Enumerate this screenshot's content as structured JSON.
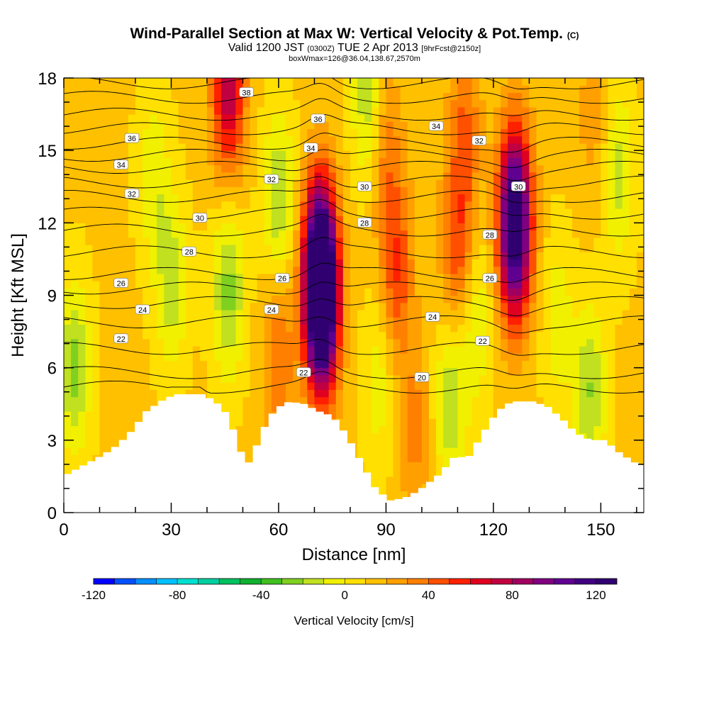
{
  "title": {
    "main": "Wind-Parallel Section at Max W: Vertical Velocity & Pot.Temp.",
    "copyright": "(C)",
    "valid_prefix": "Valid 1200 JST",
    "valid_zulu": "(0300Z)",
    "valid_date": "TUE 2 Apr 2013",
    "forecast": "[9hrFcst@2150z]",
    "box_info": "boxWmax=126@36.04,138.67,2570m"
  },
  "chart_data": {
    "type": "heatmap",
    "xlabel": "Distance [nm]",
    "ylabel": "Height [Kft MSL]",
    "xlim": [
      0,
      162
    ],
    "ylim": [
      0,
      18
    ],
    "x_ticks": [
      0,
      30,
      60,
      90,
      120,
      150
    ],
    "y_ticks": [
      0,
      3,
      6,
      9,
      12,
      15,
      18
    ],
    "colorbar": {
      "label": "Vertical Velocity [cm/s]",
      "range": [
        -120,
        130
      ],
      "step": 10,
      "tick_values": [
        -120,
        -80,
        -40,
        0,
        40,
        80,
        120
      ],
      "colors": [
        "#0000ff",
        "#0050ff",
        "#0090ff",
        "#00c0ff",
        "#00e0d0",
        "#00d0a0",
        "#00c060",
        "#10b030",
        "#40c020",
        "#80d020",
        "#c0e020",
        "#f0f000",
        "#ffe000",
        "#ffc000",
        "#ffa000",
        "#ff8000",
        "#ff5000",
        "#ff2000",
        "#e00020",
        "#c00040",
        "#a00060",
        "#800080",
        "#600090",
        "#400080",
        "#300070"
      ]
    },
    "terrain_kft": [
      [
        0,
        1.6
      ],
      [
        5,
        2
      ],
      [
        10,
        2.4
      ],
      [
        14,
        2.8
      ],
      [
        18,
        3.4
      ],
      [
        22,
        4.2
      ],
      [
        26,
        4.6
      ],
      [
        30,
        4.9
      ],
      [
        38,
        4.9
      ],
      [
        42,
        4.5
      ],
      [
        45,
        4.0
      ],
      [
        48,
        2.6
      ],
      [
        51,
        2.0
      ],
      [
        54,
        3.3
      ],
      [
        58,
        4.3
      ],
      [
        62,
        4.6
      ],
      [
        66,
        4.5
      ],
      [
        70,
        4.2
      ],
      [
        74,
        4.0
      ],
      [
        78,
        3.2
      ],
      [
        82,
        2.1
      ],
      [
        86,
        1.0
      ],
      [
        90,
        0.5
      ],
      [
        94,
        0.6
      ],
      [
        98,
        0.9
      ],
      [
        104,
        1.6
      ],
      [
        108,
        2.3
      ],
      [
        112,
        2.3
      ],
      [
        116,
        3.3
      ],
      [
        120,
        4.2
      ],
      [
        124,
        4.6
      ],
      [
        130,
        4.6
      ],
      [
        134,
        4.4
      ],
      [
        138,
        3.9
      ],
      [
        142,
        3.3
      ],
      [
        146,
        3.0
      ],
      [
        150,
        3.0
      ],
      [
        154,
        2.5
      ],
      [
        158,
        2.1
      ],
      [
        162,
        1.9
      ]
    ],
    "velocity_features": [
      {
        "x": 72,
        "z": 8.5,
        "value": 126
      },
      {
        "x": 71.5,
        "z": 10.5,
        "value": 95
      },
      {
        "x": 126,
        "z": 12.7,
        "value": 80
      },
      {
        "x": 126,
        "z": 11,
        "value": 60
      },
      {
        "x": 46,
        "z": 17.5,
        "value": 65
      },
      {
        "x": 60,
        "z": 6.5,
        "value": 28
      },
      {
        "x": 93,
        "z": 10,
        "value": 38
      },
      {
        "x": 110,
        "z": 11,
        "value": 38
      },
      {
        "x": 112,
        "z": 16,
        "value": 28
      },
      {
        "x": 90,
        "z": 15,
        "value": 25
      },
      {
        "x": 98,
        "z": 3.5,
        "value": 22
      },
      {
        "x": 148,
        "z": 16.5,
        "value": 14
      },
      {
        "x": 3,
        "z": 6,
        "value": -35
      },
      {
        "x": 30,
        "z": 9.5,
        "value": -28
      },
      {
        "x": 46,
        "z": 9.2,
        "value": -36
      },
      {
        "x": 60,
        "z": 13,
        "value": -32
      },
      {
        "x": 85,
        "z": 17,
        "value": -30
      },
      {
        "x": 88,
        "z": 5.5,
        "value": -18
      },
      {
        "x": 108,
        "z": 4.5,
        "value": -30
      },
      {
        "x": 115,
        "z": 8,
        "value": -22
      },
      {
        "x": 147,
        "z": 5,
        "value": -32
      },
      {
        "x": 138,
        "z": 8,
        "value": -18
      },
      {
        "x": 155,
        "z": 14,
        "value": -26
      },
      {
        "x": 25,
        "z": 14,
        "value": -20
      }
    ],
    "theta_contours": {
      "levels": [
        20,
        21,
        22,
        23,
        24,
        25,
        26,
        27,
        28,
        29,
        30,
        31,
        32,
        33,
        34,
        35,
        36,
        37,
        38
      ],
      "base_height_kft": [
        5.2,
        5.8,
        6.8,
        7.9,
        8.7,
        9.3,
        9.9,
        10.8,
        11.7,
        12.4,
        13.1,
        13.7,
        14.3,
        14.8,
        15.3,
        15.9,
        16.5,
        17.2,
        17.8
      ]
    },
    "contour_labels": [
      {
        "text": "38",
        "x": 51,
        "z": 17.4
      },
      {
        "text": "36",
        "x": 71,
        "z": 16.3
      },
      {
        "text": "34",
        "x": 69,
        "z": 15.1
      },
      {
        "text": "32",
        "x": 58,
        "z": 13.8
      },
      {
        "text": "30",
        "x": 84,
        "z": 13.5
      },
      {
        "text": "28",
        "x": 84,
        "z": 12.0
      },
      {
        "text": "26",
        "x": 61,
        "z": 9.7
      },
      {
        "text": "24",
        "x": 58,
        "z": 8.4
      },
      {
        "text": "22",
        "x": 67,
        "z": 5.8
      },
      {
        "text": "20",
        "x": 100,
        "z": 5.6
      },
      {
        "text": "36",
        "x": 19,
        "z": 15.5
      },
      {
        "text": "34",
        "x": 16,
        "z": 14.4
      },
      {
        "text": "32",
        "x": 19,
        "z": 13.2
      },
      {
        "text": "30",
        "x": 38,
        "z": 12.2
      },
      {
        "text": "28",
        "x": 35,
        "z": 10.8
      },
      {
        "text": "26",
        "x": 16,
        "z": 9.5
      },
      {
        "text": "24",
        "x": 22,
        "z": 8.4
      },
      {
        "text": "22",
        "x": 16,
        "z": 7.2
      },
      {
        "text": "34",
        "x": 104,
        "z": 16.0
      },
      {
        "text": "32",
        "x": 116,
        "z": 15.4
      },
      {
        "text": "30",
        "x": 127,
        "z": 13.5
      },
      {
        "text": "28",
        "x": 119,
        "z": 11.5
      },
      {
        "text": "26",
        "x": 119,
        "z": 9.7
      },
      {
        "text": "24",
        "x": 103,
        "z": 8.1
      },
      {
        "text": "22",
        "x": 117,
        "z": 7.1
      }
    ]
  }
}
